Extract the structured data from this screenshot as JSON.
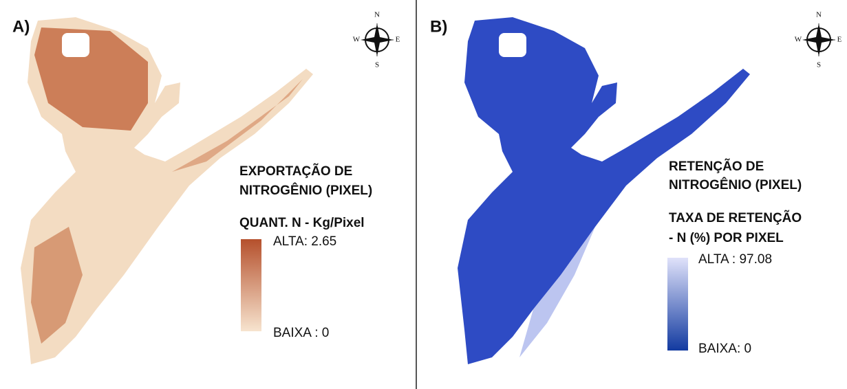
{
  "panels": [
    {
      "label": "A)",
      "compass": {
        "n": "N",
        "w": "W",
        "e": "E",
        "s": "S"
      },
      "title": [
        "EXPORTAÇÃO DE",
        "NITROGÊNIO (PIXEL)"
      ],
      "legend": {
        "title": [
          "QUANT. N - Kg/Pixel"
        ],
        "high": "ALTA: 2.65",
        "low": "BAIXA : 0"
      }
    },
    {
      "label": "B)",
      "compass": {
        "n": "N",
        "w": "W",
        "e": "E",
        "s": "S"
      },
      "title": [
        "RETENÇÃO DE",
        "NITROGÊNIO (PIXEL)"
      ],
      "legend": {
        "title": [
          "TAXA DE RETENÇÃO",
          "- N (%) POR PIXEL"
        ],
        "high": "ALTA : 97.08",
        "low": "BAIXA: 0"
      }
    }
  ]
}
